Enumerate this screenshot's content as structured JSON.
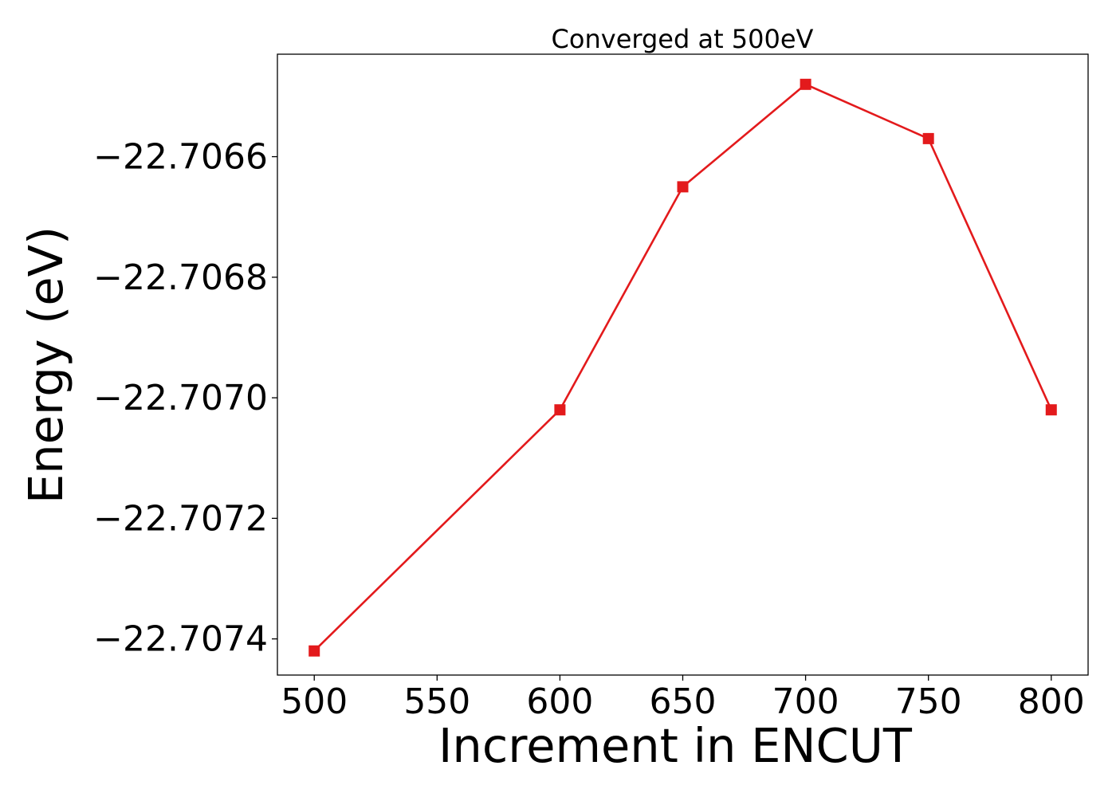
{
  "chart_data": {
    "type": "line",
    "title": "Converged at 500eV",
    "xlabel": "Increment in ENCUT",
    "ylabel": "Energy (eV)",
    "x": [
      500,
      600,
      650,
      700,
      750,
      800
    ],
    "series": [
      {
        "values": [
          -22.70742,
          -22.70702,
          -22.70665,
          -22.70648,
          -22.70657,
          -22.70702
        ],
        "color": "#e31a1c",
        "marker": "square"
      }
    ],
    "xticks": [
      500,
      550,
      600,
      650,
      700,
      750,
      800
    ],
    "xtick_labels": [
      "500",
      "550",
      "600",
      "650",
      "700",
      "750",
      "800"
    ],
    "yticks": [
      -22.7074,
      -22.7072,
      -22.707,
      -22.7068,
      -22.7066
    ],
    "ytick_labels": [
      "−22.7074",
      "−22.7072",
      "−22.7070",
      "−22.7068",
      "−22.7066"
    ],
    "xlim": [
      485,
      815
    ],
    "ylim": [
      -22.70746,
      -22.70643
    ],
    "grid": false,
    "legend": "none"
  }
}
